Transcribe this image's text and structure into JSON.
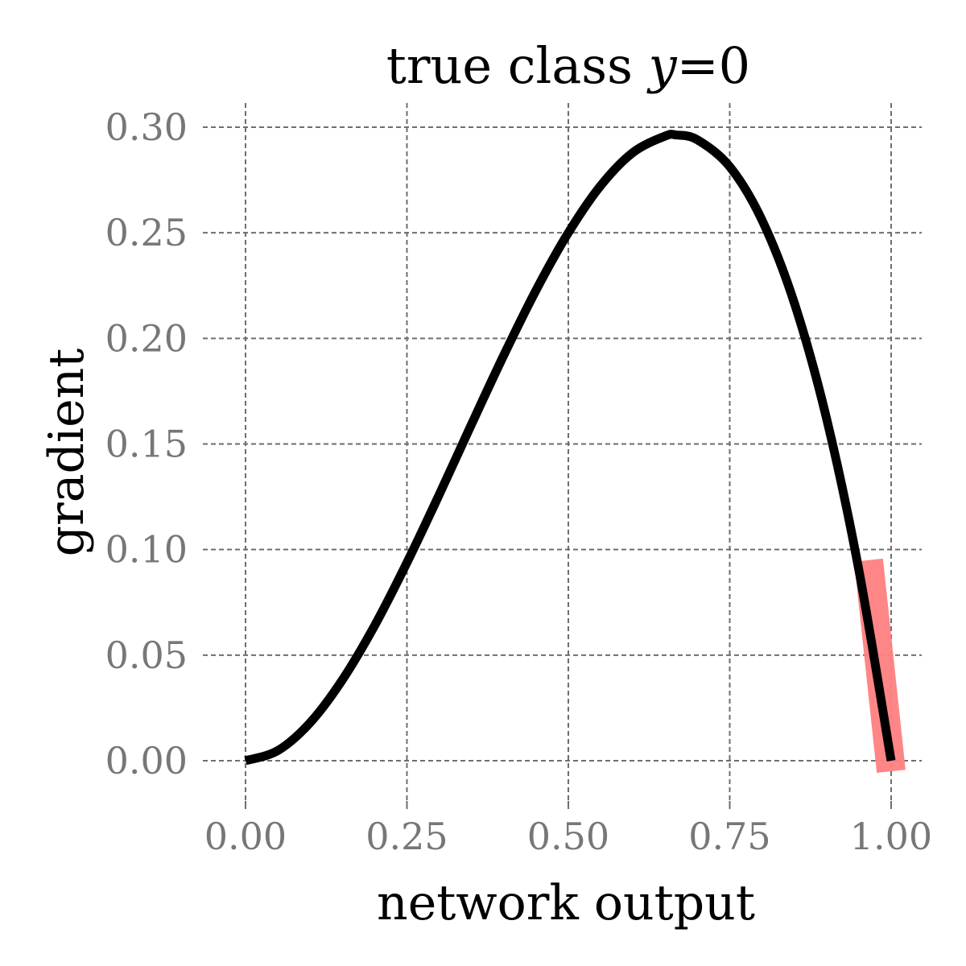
{
  "chart_data": {
    "type": "line",
    "title_prefix": "true class ",
    "title_var": "y",
    "title_suffix": "=0",
    "xlabel": "network output",
    "ylabel": "gradient",
    "xlim": [
      0,
      1
    ],
    "ylim": [
      -0.012,
      0.3
    ],
    "xticks": [
      0,
      0.25,
      0.5,
      0.75,
      1.0
    ],
    "xtick_labels": [
      "0.00",
      "0.25",
      "0.50",
      "0.75",
      "1.00"
    ],
    "yticks": [
      0,
      0.05,
      0.1,
      0.15,
      0.2,
      0.25,
      0.3
    ],
    "ytick_labels": [
      "0.00",
      "0.05",
      "0.10",
      "0.15",
      "0.20",
      "0.25",
      "0.30"
    ],
    "grid": true,
    "series": [
      {
        "color": "#000000",
        "x": [
          0.0,
          0.05,
          0.1,
          0.15,
          0.2,
          0.25,
          0.3,
          0.35,
          0.4,
          0.45,
          0.5,
          0.55,
          0.6,
          0.65,
          0.667,
          0.7,
          0.75,
          0.8,
          0.85,
          0.9,
          0.95,
          1.0
        ],
        "y": [
          0.0,
          0.0048,
          0.018,
          0.0383,
          0.064,
          0.0938,
          0.126,
          0.1593,
          0.192,
          0.2228,
          0.25,
          0.2723,
          0.288,
          0.2958,
          0.2963,
          0.294,
          0.2813,
          0.256,
          0.2168,
          0.162,
          0.0903,
          0.0
        ]
      }
    ],
    "highlight": {
      "color": "#ff8080",
      "x": [
        0.965,
        1.0
      ],
      "y": [
        0.095,
        -0.005
      ]
    }
  }
}
